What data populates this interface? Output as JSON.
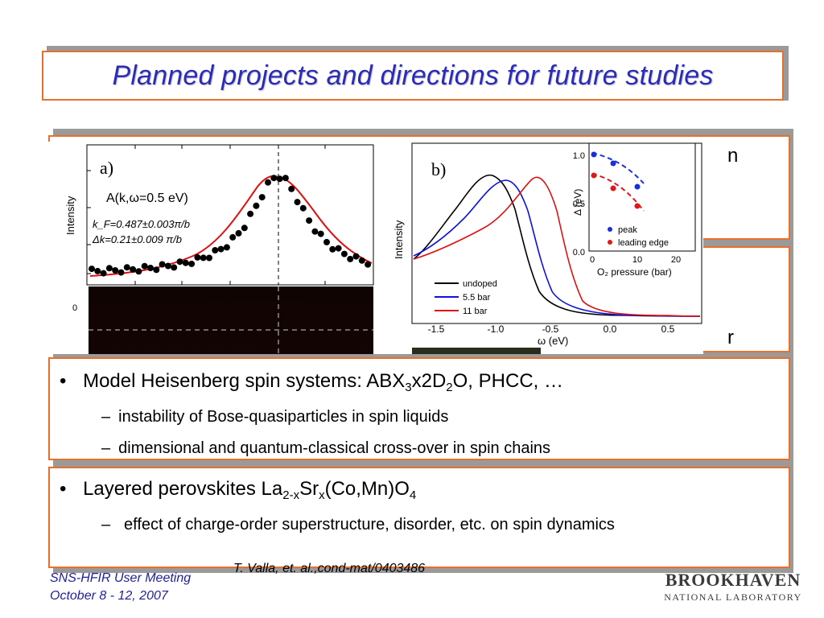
{
  "slide": {
    "title": "Planned projects and directions for future studies"
  },
  "figure": {
    "panel_a": {
      "label": "a)",
      "ylabel": "Intensity",
      "formula": "A(k,ω=0.5 eV)",
      "kf": "k_F=0.487±0.003π/b",
      "dk": "Δk=0.21±0.009 π/b",
      "tick_zero": "0"
    },
    "panel_b": {
      "label": "b)",
      "ylabel": "Intensity",
      "xlabel": "ω (eV)",
      "xticks": [
        "-1.5",
        "-1.0",
        "-0.5",
        "0.0",
        "0.5"
      ],
      "legend": [
        "undoped",
        "5.5 bar",
        "11 bar"
      ],
      "inset": {
        "ylabel": "Δ (eV)",
        "xlabel": "O₂ pressure (bar)",
        "yticks": [
          "1.0",
          "0.5",
          "0.0"
        ],
        "xticks": [
          "0",
          "10",
          "20"
        ],
        "legend": [
          "peak",
          "leading edge"
        ]
      }
    },
    "colors": {
      "undoped": "#000000",
      "p55": "#1010e0",
      "p11": "#e01010",
      "peak": "#1a2fd8",
      "edge": "#e01818"
    }
  },
  "partial_glyphs": {
    "right_top": "n",
    "right_mid": "r"
  },
  "box1": {
    "bullet_pre": "Model Heisenberg spin systems: ABX",
    "bullet_sub1": "3",
    "bullet_mid": "x2D",
    "bullet_sub2": "2",
    "bullet_post": "O, PHCC, …",
    "items": [
      "instability of Bose-quasiparticles in spin liquids",
      "dimensional and quantum-classical cross-over in spin chains"
    ]
  },
  "box2": {
    "bullet_pre": "Layered perovskites La",
    "bullet_sub1": "2-x",
    "bullet_mid": "Sr",
    "bullet_sub2": "x",
    "bullet_mid2": "(Co,Mn)O",
    "bullet_sub3": "4",
    "items": [
      "effect of charge-order superstructure, disorder, etc. on spin dynamics"
    ]
  },
  "citation": "T. Valla, et. al.,cond-mat/0403486",
  "footer": {
    "line1": "SNS-HFIR User Meeting",
    "line2": "October 8 - 12, 2007"
  },
  "logo": {
    "line1": "BROOKHAVEN",
    "line2": "NATIONAL LABORATORY"
  }
}
